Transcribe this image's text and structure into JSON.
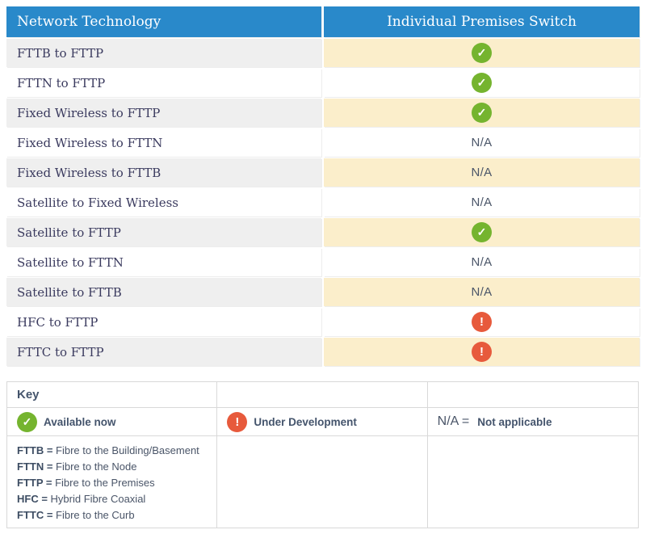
{
  "colors": {
    "header_bg": "#2989ca",
    "cream": "#fbeecb",
    "gray": "#efefef",
    "green": "#75b42f",
    "orange": "#e75a3c",
    "row_text": "#3a3a5e",
    "slate": "#4a5568"
  },
  "icons": {
    "check_glyph": "✓",
    "exclamation_glyph": "!"
  },
  "main_table": {
    "headers": [
      "Network Technology",
      "Individual Premises Switch"
    ],
    "na_label": "N/A",
    "rows": [
      {
        "label": "FTTB to FTTP",
        "status": "available"
      },
      {
        "label": "FTTN to FTTP",
        "status": "available"
      },
      {
        "label": "Fixed Wireless to FTTP",
        "status": "available"
      },
      {
        "label": "Fixed Wireless to FTTN",
        "status": "na"
      },
      {
        "label": "Fixed Wireless to FTTB",
        "status": "na"
      },
      {
        "label": "Satellite to Fixed Wireless",
        "status": "na"
      },
      {
        "label": "Satellite to FTTP",
        "status": "available"
      },
      {
        "label": "Satellite to FTTN",
        "status": "na"
      },
      {
        "label": "Satellite to FTTB",
        "status": "na"
      },
      {
        "label": "HFC to FTTP",
        "status": "under_development"
      },
      {
        "label": "FTTC to FTTP",
        "status": "under_development"
      }
    ]
  },
  "key_table": {
    "title": "Key",
    "available_label": "Available now",
    "under_development_label": "Under Development",
    "na_prefix": "N/A = ",
    "na_label": "Not applicable",
    "abbreviations": [
      {
        "abbr": "FTTB",
        "definition": "Fibre to the Building/Basement"
      },
      {
        "abbr": "FTTN",
        "definition": "Fibre to the Node"
      },
      {
        "abbr": "FTTP",
        "definition": "Fibre to the Premises"
      },
      {
        "abbr": "HFC",
        "definition": "Hybrid Fibre Coaxial"
      },
      {
        "abbr": "FTTC",
        "definition": "Fibre to the Curb"
      }
    ]
  }
}
